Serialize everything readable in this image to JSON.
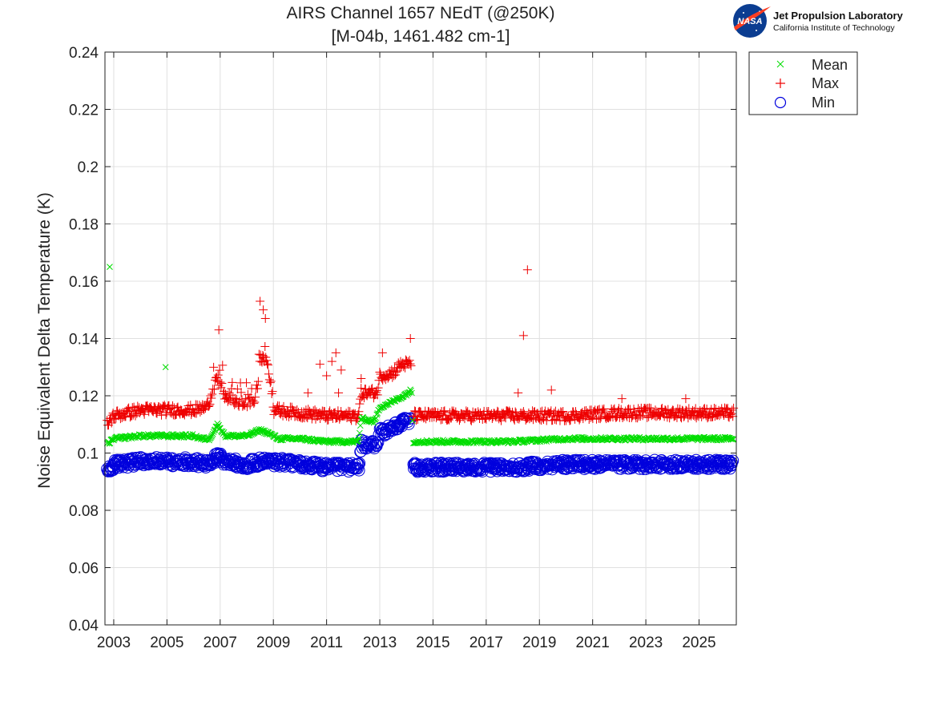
{
  "chart_data": {
    "type": "scatter",
    "title": "AIRS Channel 1657 NEdT (@250K)",
    "subtitle": "[M-04b, 1461.482 cm-1]",
    "xlabel": "",
    "ylabel": "Noise Equivalent Delta Temperature (K)",
    "xlim": [
      2002.67,
      2026.4
    ],
    "ylim": [
      0.04,
      0.24
    ],
    "x_ticks": [
      "2003",
      "2005",
      "2007",
      "2009",
      "2011",
      "2013",
      "2015",
      "2017",
      "2019",
      "2021",
      "2023",
      "2025"
    ],
    "y_ticks": [
      "0.04",
      "0.06",
      "0.08",
      "0.1",
      "0.12",
      "0.14",
      "0.16",
      "0.18",
      "0.2",
      "0.22",
      "0.24"
    ],
    "grid": true,
    "legend_position": "outside-top-right",
    "series": [
      {
        "name": "Mean",
        "marker": "x",
        "color": "#00dd00",
        "profile": [
          [
            2002.75,
            0.103
          ],
          [
            2003.0,
            0.105
          ],
          [
            2004.0,
            0.106
          ],
          [
            2005.0,
            0.106
          ],
          [
            2006.0,
            0.106
          ],
          [
            2006.3,
            0.105
          ],
          [
            2006.6,
            0.105
          ],
          [
            2006.9,
            0.11
          ],
          [
            2007.2,
            0.106
          ],
          [
            2008.0,
            0.106
          ],
          [
            2008.5,
            0.108
          ],
          [
            2008.8,
            0.107
          ],
          [
            2009.2,
            0.105
          ],
          [
            2010.0,
            0.105
          ],
          [
            2011.0,
            0.104
          ],
          [
            2012.2,
            0.104
          ],
          [
            2012.3,
            0.112
          ],
          [
            2012.8,
            0.111
          ],
          [
            2013.0,
            0.116
          ],
          [
            2013.5,
            0.118
          ],
          [
            2013.9,
            0.12
          ],
          [
            2014.2,
            0.122
          ],
          [
            2014.25,
            0.104
          ],
          [
            2016.0,
            0.104
          ],
          [
            2018.0,
            0.104
          ],
          [
            2020.0,
            0.105
          ],
          [
            2022.0,
            0.105
          ],
          [
            2024.0,
            0.105
          ],
          [
            2026.3,
            0.105
          ]
        ],
        "outliers": [
          [
            2002.85,
            0.165
          ],
          [
            2004.95,
            0.13
          ]
        ]
      },
      {
        "name": "Max",
        "marker": "+",
        "color": "#ee0000",
        "profile": [
          [
            2002.75,
            0.11
          ],
          [
            2003.0,
            0.113
          ],
          [
            2004.0,
            0.115
          ],
          [
            2005.0,
            0.115
          ],
          [
            2006.0,
            0.115
          ],
          [
            2006.5,
            0.116
          ],
          [
            2006.9,
            0.126
          ],
          [
            2007.2,
            0.12
          ],
          [
            2007.8,
            0.117
          ],
          [
            2008.3,
            0.118
          ],
          [
            2008.6,
            0.135
          ],
          [
            2008.8,
            0.13
          ],
          [
            2009.0,
            0.115
          ],
          [
            2010.0,
            0.114
          ],
          [
            2011.0,
            0.113
          ],
          [
            2012.2,
            0.113
          ],
          [
            2012.3,
            0.121
          ],
          [
            2012.9,
            0.121
          ],
          [
            2013.0,
            0.127
          ],
          [
            2013.5,
            0.128
          ],
          [
            2013.8,
            0.131
          ],
          [
            2014.2,
            0.131
          ],
          [
            2014.25,
            0.113
          ],
          [
            2016.0,
            0.113
          ],
          [
            2018.0,
            0.113
          ],
          [
            2020.0,
            0.113
          ],
          [
            2022.0,
            0.114
          ],
          [
            2024.0,
            0.114
          ],
          [
            2026.3,
            0.114
          ]
        ],
        "outliers": [
          [
            2006.95,
            0.143
          ],
          [
            2008.5,
            0.153
          ],
          [
            2008.62,
            0.15
          ],
          [
            2008.7,
            0.147
          ],
          [
            2010.3,
            0.121
          ],
          [
            2010.75,
            0.131
          ],
          [
            2011.0,
            0.127
          ],
          [
            2011.2,
            0.132
          ],
          [
            2011.35,
            0.135
          ],
          [
            2011.55,
            0.129
          ],
          [
            2011.45,
            0.121
          ],
          [
            2012.3,
            0.126
          ],
          [
            2013.1,
            0.135
          ],
          [
            2014.15,
            0.14
          ],
          [
            2018.2,
            0.121
          ],
          [
            2018.4,
            0.141
          ],
          [
            2018.55,
            0.164
          ],
          [
            2019.45,
            0.122
          ],
          [
            2022.1,
            0.119
          ],
          [
            2024.5,
            0.119
          ]
        ]
      },
      {
        "name": "Min",
        "marker": "o",
        "color": "#0000dd",
        "profile": [
          [
            2002.75,
            0.093
          ],
          [
            2003.0,
            0.096
          ],
          [
            2004.0,
            0.097
          ],
          [
            2005.0,
            0.097
          ],
          [
            2006.0,
            0.097
          ],
          [
            2006.5,
            0.096
          ],
          [
            2006.9,
            0.099
          ],
          [
            2007.2,
            0.097
          ],
          [
            2008.0,
            0.096
          ],
          [
            2008.5,
            0.097
          ],
          [
            2009.0,
            0.097
          ],
          [
            2010.0,
            0.096
          ],
          [
            2011.0,
            0.095
          ],
          [
            2012.2,
            0.095
          ],
          [
            2012.3,
            0.103
          ],
          [
            2012.9,
            0.103
          ],
          [
            2013.0,
            0.107
          ],
          [
            2013.5,
            0.109
          ],
          [
            2014.0,
            0.111
          ],
          [
            2014.2,
            0.112
          ],
          [
            2014.25,
            0.095
          ],
          [
            2016.0,
            0.095
          ],
          [
            2018.0,
            0.095
          ],
          [
            2020.0,
            0.096
          ],
          [
            2022.0,
            0.096
          ],
          [
            2024.0,
            0.096
          ],
          [
            2026.3,
            0.096
          ]
        ],
        "outliers": []
      }
    ]
  },
  "logo": {
    "agency": "NASA",
    "name": "Jet Propulsion Laboratory",
    "institution": "California Institute of Technology"
  },
  "colors": {
    "mean": "#00dd00",
    "max": "#ee0000",
    "min": "#0000dd",
    "grid": "#e0e0e0",
    "axis": "#222222",
    "nasa_blue": "#0b3d91",
    "nasa_red": "#fc3d21"
  }
}
